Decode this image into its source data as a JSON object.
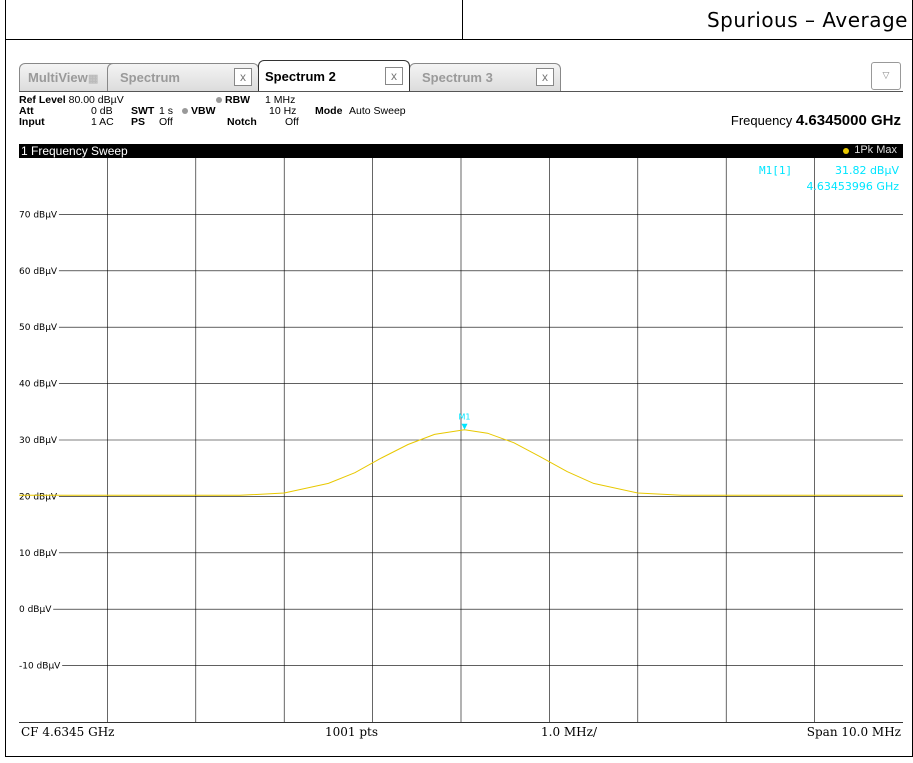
{
  "header": {
    "title": "Spurious – Average"
  },
  "tabs": [
    {
      "label": "MultiView",
      "state": "inactive"
    },
    {
      "label": "Spectrum",
      "state": "inactive",
      "close": "x"
    },
    {
      "label": "Spectrum 2",
      "state": "active",
      "close": "x"
    },
    {
      "label": "Spectrum 3",
      "state": "inactive",
      "close": "x"
    }
  ],
  "dropdown_icon": "chevron-down-icon",
  "params": {
    "ref_level_label": "Ref Level",
    "ref_level_value": "80.00 dBµV",
    "att_label": "Att",
    "att_value": "0 dB",
    "input_label": "Input",
    "input_value": "1 AC",
    "swt_label": "SWT",
    "swt_value": "1 s",
    "ps_label": "PS",
    "ps_value": "Off",
    "rbw_label": "RBW",
    "rbw_value": "1 MHz",
    "vbw_label": "VBW",
    "vbw_value": "10 Hz",
    "notch_label": "Notch",
    "notch_value": "Off",
    "mode_label": "Mode",
    "mode_value": "Auto Sweep",
    "frequency_label": "Frequency",
    "frequency_value": "4.6345000 GHz"
  },
  "sweep": {
    "title": "1 Frequency Sweep",
    "trace_label": "1Pk Max"
  },
  "colors": {
    "trace": "#e8c800",
    "marker": "#00e5ff",
    "grid": "#000000"
  },
  "chart_data": {
    "type": "line",
    "xlim": [
      4.6295,
      4.6395
    ],
    "ylim": [
      -20,
      80
    ],
    "y_ticks": [
      -10,
      0,
      10,
      20,
      30,
      40,
      50,
      60,
      70
    ],
    "y_tick_labels": [
      "-10 dBµV",
      "0 dBµV",
      "10 dBµV",
      "20 dBµV",
      "30 dBµV",
      "40 dBµV",
      "50 dBµV",
      "60 dBµV",
      "70 dBµV"
    ],
    "grid": true,
    "series": [
      {
        "x": [
          4.6295,
          4.632,
          4.6325,
          4.633,
          4.6333,
          4.6336,
          4.6339,
          4.6342,
          4.63454,
          4.6348,
          4.6351,
          4.6354,
          4.6357,
          4.636,
          4.6365,
          4.637,
          4.6395
        ],
        "y": [
          20.2,
          20.2,
          20.6,
          22.3,
          24.2,
          26.8,
          29.2,
          31.0,
          31.82,
          31.2,
          29.5,
          27.0,
          24.4,
          22.3,
          20.6,
          20.2,
          20.2
        ]
      }
    ],
    "marker": {
      "name": "M1",
      "x": 4.63453996,
      "y": 31.82,
      "readout_label": "M1[1]",
      "readout_level": "31.82 dBµV",
      "readout_freq": "4.63453996 GHz"
    }
  },
  "footer": {
    "cf": "CF 4.6345 GHz",
    "pts": "1001 pts",
    "div": "1.0 MHz/",
    "span": "Span 10.0 MHz"
  }
}
